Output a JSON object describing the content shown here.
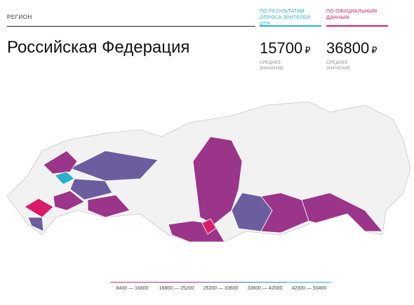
{
  "header": {
    "region_label": "РЕГИОН",
    "region_name": "Российская Федерация"
  },
  "columns": [
    {
      "heading": "ПО РЕЗУЛЬТАТАМ ОПРОСА ЗРИТЕЛЕЙ ОТР",
      "value": "15700",
      "currency": "₽",
      "caption": "СРЕДНЕЕ ЗНАЧЕНИЕ",
      "color": "#2ab0cc"
    },
    {
      "heading": "ПО ОФИЦИАЛЬНЫМ ДАННЫМ",
      "value": "36800",
      "currency": "₽",
      "caption": "СРЕДНЕЕ ЗНАЧЕНИЕ",
      "color": "#d81b6a"
    }
  ],
  "legend": [
    {
      "label": "8400 — 16800",
      "color": "#b8387f"
    },
    {
      "label": "16800 — 25200",
      "color": "#9b3589"
    },
    {
      "label": "25200 — 33600",
      "color": "#6c5d9f"
    },
    {
      "label": "33600 — 42000",
      "color": "#3f7fc1"
    },
    {
      "label": "42000 — 50400",
      "color": "#2ab0cc"
    }
  ]
}
